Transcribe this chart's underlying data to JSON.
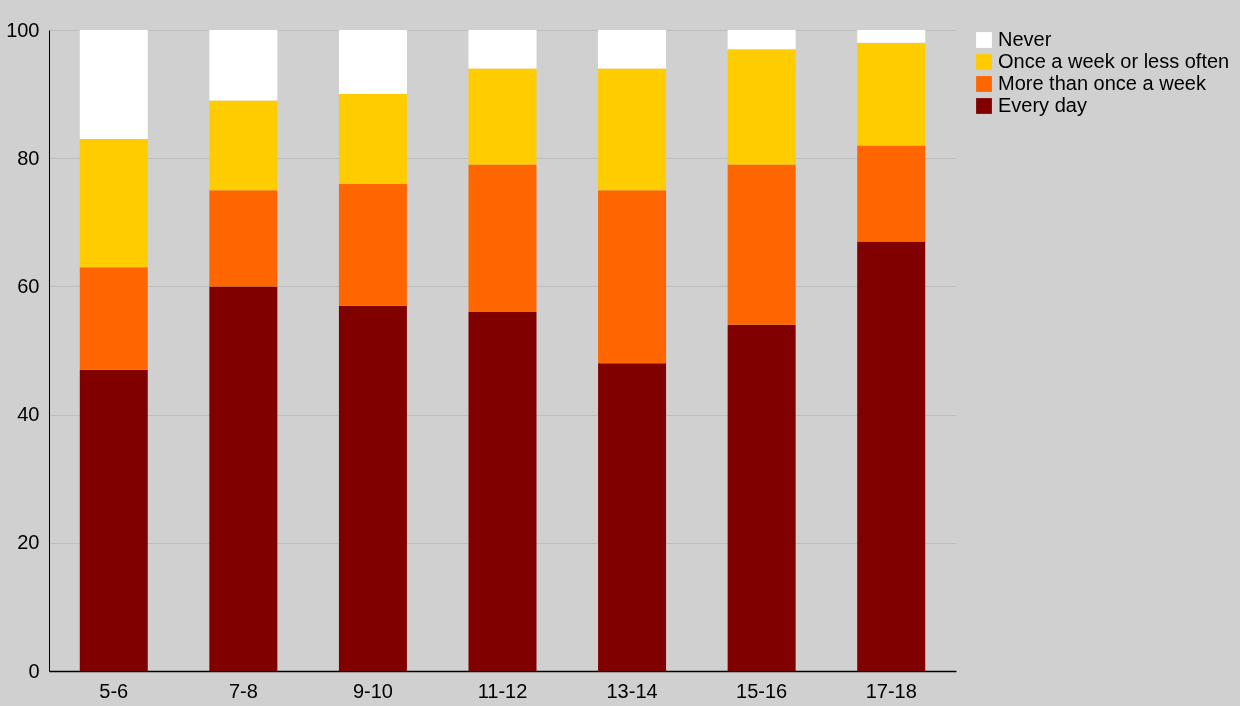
{
  "chart_data": {
    "type": "bar",
    "stacked": true,
    "categories": [
      "5-6",
      "7-8",
      "9-10",
      "11-12",
      "13-14",
      "15-16",
      "17-18"
    ],
    "series": [
      {
        "name": "Every day",
        "color": "#800000",
        "values": [
          47,
          60,
          57,
          56,
          48,
          54,
          67
        ]
      },
      {
        "name": "More than once a week",
        "color": "#ff6600",
        "values": [
          16,
          15,
          19,
          23,
          27,
          25,
          15
        ]
      },
      {
        "name": "Once a week or less often",
        "color": "#ffcc00",
        "values": [
          20,
          14,
          14,
          15,
          19,
          18,
          16
        ]
      },
      {
        "name": "Never",
        "color": "#ffffff",
        "values": [
          17,
          11,
          10,
          6,
          6,
          3,
          2
        ]
      }
    ],
    "ylim": [
      0,
      100
    ],
    "yticks": [
      0,
      20,
      40,
      60,
      80,
      100
    ],
    "grid": "y",
    "legend": "right"
  }
}
